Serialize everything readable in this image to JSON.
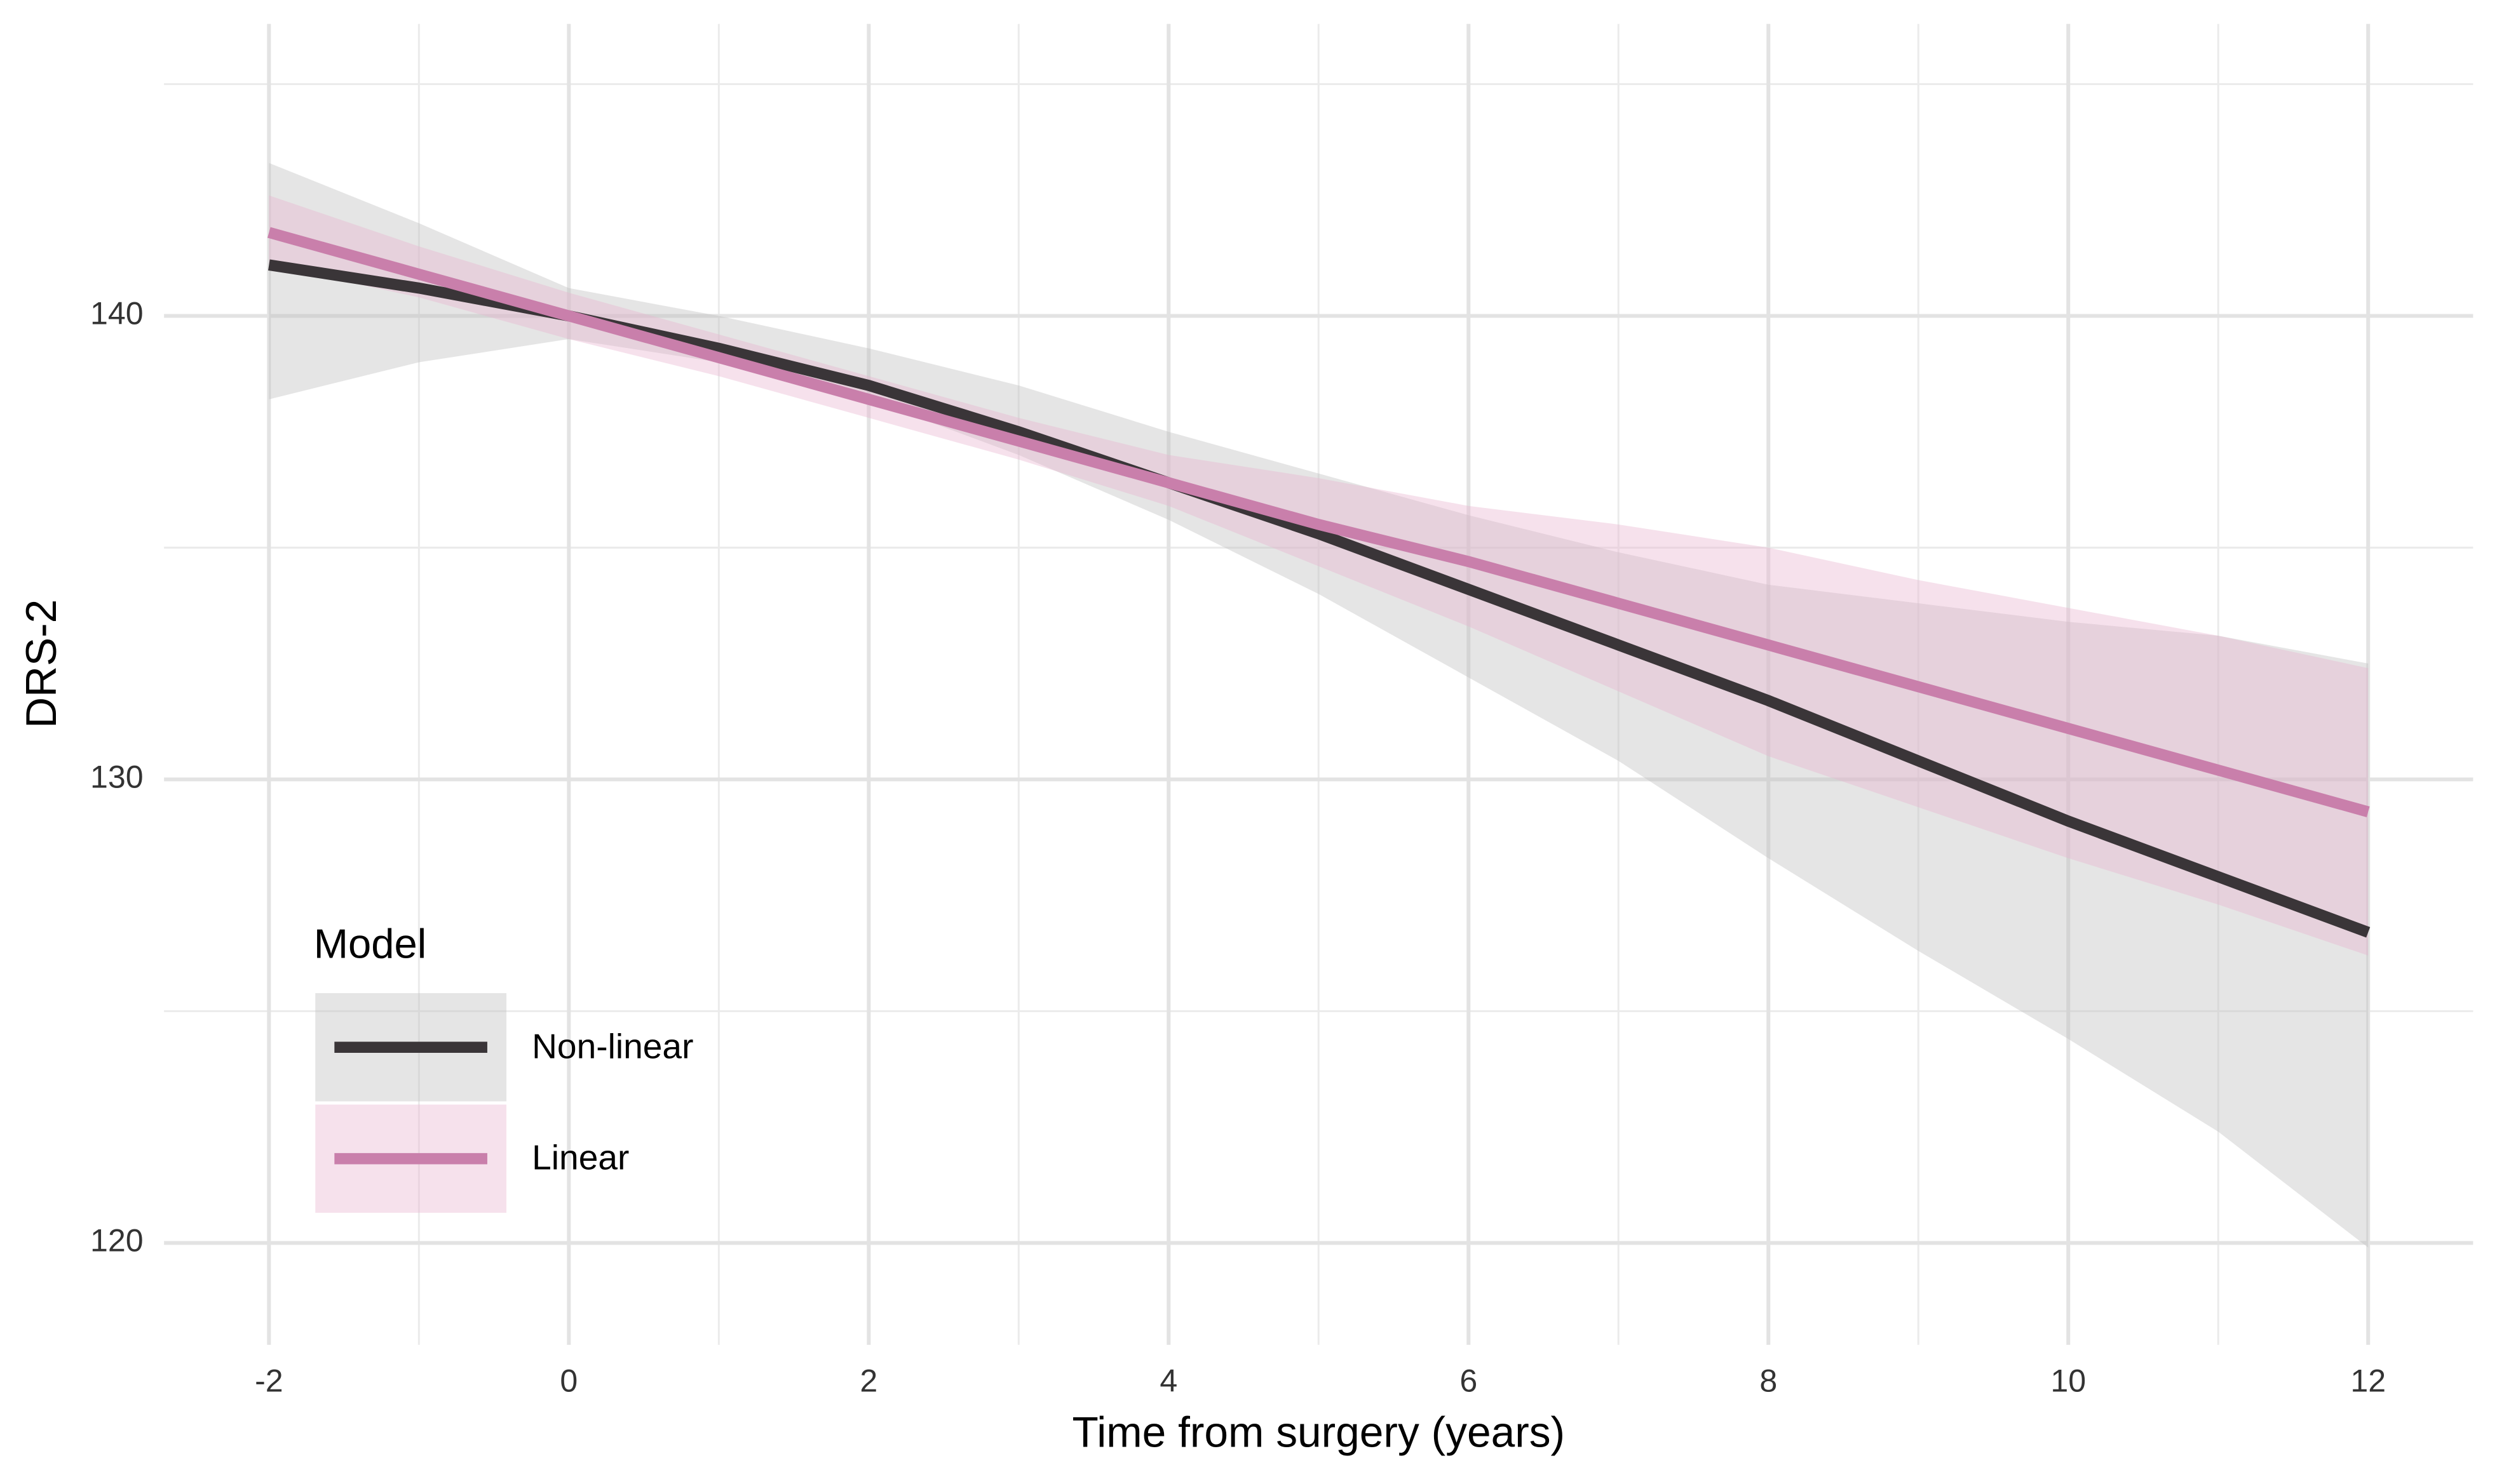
{
  "chart_data": {
    "type": "line",
    "x_label": "Time from surgery (years)",
    "y_label": "DRS-2",
    "x": [
      -2,
      -1,
      0,
      1,
      2,
      3,
      4,
      5,
      6,
      7,
      8,
      9,
      10,
      11,
      12
    ],
    "series": [
      {
        "name": "Non-linear",
        "color": "#3a3538",
        "band_color": "#bdbdbd",
        "values": [
          141.1,
          140.6,
          140.0,
          139.3,
          138.5,
          137.5,
          136.4,
          135.3,
          134.1,
          132.9,
          131.7,
          130.4,
          129.1,
          127.9,
          126.7
        ],
        "lower": [
          138.2,
          139.0,
          139.5,
          139.0,
          138.2,
          137.0,
          135.6,
          134.0,
          132.2,
          130.4,
          128.3,
          126.3,
          124.4,
          122.4,
          119.9
        ],
        "upper": [
          143.3,
          142.0,
          140.6,
          140.0,
          139.3,
          138.5,
          137.5,
          136.6,
          135.7,
          134.9,
          134.2,
          133.8,
          133.4,
          133.1,
          132.5
        ]
      },
      {
        "name": "Linear",
        "color": "#c97fab",
        "band_color": "#e8b3d0",
        "values": [
          141.8,
          140.9,
          140.0,
          139.1,
          138.2,
          137.3,
          136.4,
          135.5,
          134.7,
          133.8,
          132.9,
          132.0,
          131.1,
          130.2,
          129.3
        ],
        "lower": [
          141.1,
          140.4,
          139.5,
          138.7,
          137.8,
          136.9,
          135.9,
          134.6,
          133.3,
          131.9,
          130.5,
          129.4,
          128.3,
          127.3,
          126.2
        ],
        "upper": [
          142.6,
          141.5,
          140.5,
          139.6,
          138.7,
          137.8,
          137.0,
          136.5,
          135.9,
          135.5,
          135.0,
          134.3,
          133.7,
          133.1,
          132.4
        ]
      }
    ],
    "xlim": [
      -2.7,
      12.7
    ],
    "ylim": [
      117.8,
      146.3
    ],
    "xticks": [
      -2,
      0,
      2,
      4,
      6,
      8,
      10,
      12
    ],
    "yticks": [
      120,
      130,
      140
    ],
    "x_minor_ticks": [
      -1,
      1,
      3,
      5,
      7,
      9,
      11
    ],
    "y_minor_ticks": [
      125,
      135,
      145
    ],
    "grid": true,
    "legend_title": "Model",
    "legend_position": "bottom-left"
  }
}
